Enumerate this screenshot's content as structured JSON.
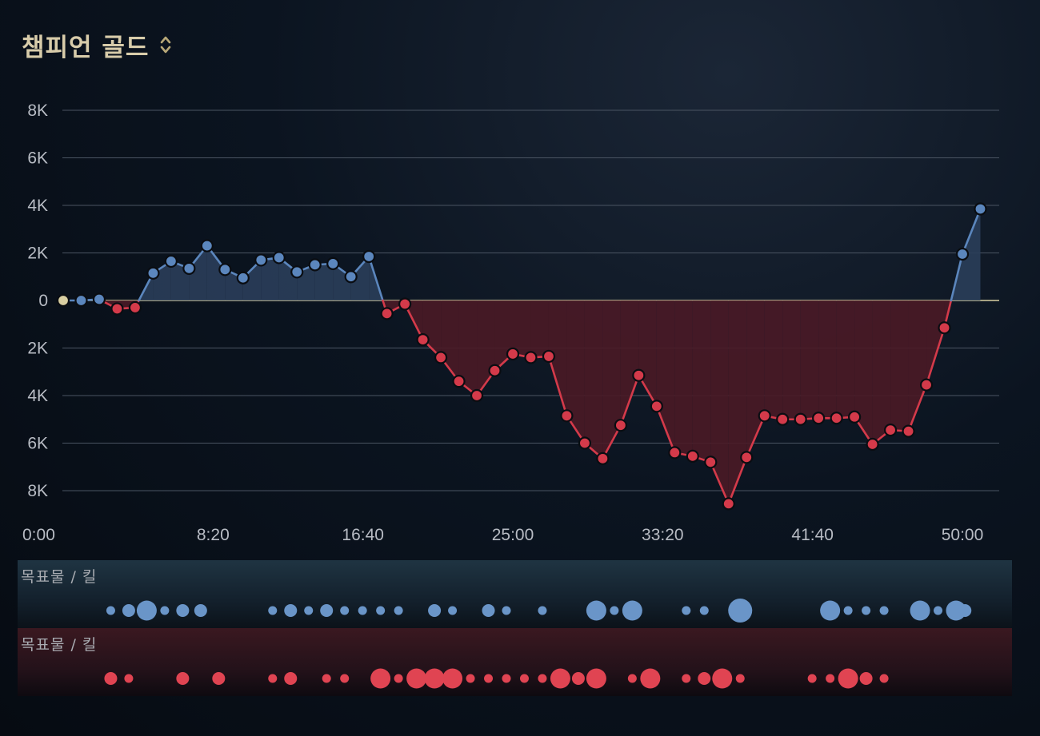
{
  "header": {
    "title": "챔피언 골드"
  },
  "icons": {
    "sort": "sort-updown-icon"
  },
  "colors": {
    "blue": "#5b86bd",
    "red": "#d43a4a",
    "neutral": "#d9cfa2",
    "blue_fill": "#2a3e5a",
    "red_fill": "#4a1a26"
  },
  "chart_data": {
    "type": "line",
    "x_unit": "minutes",
    "x_ticks": [
      "0:00",
      "8:20",
      "16:40",
      "25:00",
      "33:20",
      "41:40",
      "50:00"
    ],
    "y_ticks": [
      "8K",
      "6K",
      "4K",
      "2K",
      "0",
      "2K",
      "4K",
      "6K",
      "8K"
    ],
    "ylim": [
      -8000,
      8000
    ],
    "xlim": [
      0,
      52
    ],
    "grid": true,
    "series": [
      {
        "x": [
          0,
          1,
          2,
          3,
          4,
          5,
          6,
          7,
          8,
          9,
          10,
          11,
          12,
          13,
          14,
          15,
          16,
          17,
          18,
          19,
          20,
          21,
          22,
          23,
          24,
          25,
          26,
          27,
          28,
          29,
          30,
          31,
          32,
          33,
          34,
          35,
          36,
          37,
          38,
          39,
          40,
          41,
          42,
          43,
          44,
          45,
          46,
          47,
          48,
          49,
          50,
          51,
          52
        ],
        "y": [
          0,
          0,
          50,
          -350,
          -300,
          1150,
          1650,
          1350,
          2300,
          1300,
          950,
          1700,
          1800,
          1200,
          1500,
          1550,
          1000,
          1850,
          -550,
          -150,
          -1650,
          -2400,
          -3400,
          -4000,
          -2950,
          -2250,
          -2400,
          -2350,
          -4850,
          -6000,
          -6650,
          -5250,
          -3150,
          -4450,
          -6400,
          -6550,
          -6800,
          -8550,
          -6600,
          -4850,
          -5000,
          -5000,
          -4950,
          -4950,
          -4900,
          -6050,
          -5450,
          -5500,
          -3550,
          -1150,
          1950,
          3850,
          null
        ]
      }
    ],
    "bands": [
      {
        "label": "목표물 / 킬",
        "team": "blue",
        "events": [
          {
            "t": 3,
            "s": "s"
          },
          {
            "t": 4,
            "s": "m"
          },
          {
            "t": 5,
            "s": "l"
          },
          {
            "t": 6,
            "s": "s"
          },
          {
            "t": 7,
            "s": "m"
          },
          {
            "t": 8,
            "s": "m"
          },
          {
            "t": 12,
            "s": "s"
          },
          {
            "t": 13,
            "s": "m"
          },
          {
            "t": 14,
            "s": "s"
          },
          {
            "t": 15,
            "s": "m"
          },
          {
            "t": 16,
            "s": "s"
          },
          {
            "t": 17,
            "s": "s"
          },
          {
            "t": 18,
            "s": "s"
          },
          {
            "t": 19,
            "s": "s"
          },
          {
            "t": 21,
            "s": "m"
          },
          {
            "t": 22,
            "s": "s"
          },
          {
            "t": 24,
            "s": "m"
          },
          {
            "t": 25,
            "s": "s"
          },
          {
            "t": 27,
            "s": "s"
          },
          {
            "t": 30,
            "s": "l"
          },
          {
            "t": 31,
            "s": "s"
          },
          {
            "t": 32,
            "s": "l"
          },
          {
            "t": 35,
            "s": "s"
          },
          {
            "t": 36,
            "s": "s"
          },
          {
            "t": 38,
            "s": "xl"
          },
          {
            "t": 43,
            "s": "l"
          },
          {
            "t": 44,
            "s": "s"
          },
          {
            "t": 45,
            "s": "s"
          },
          {
            "t": 46,
            "s": "s"
          },
          {
            "t": 48,
            "s": "l"
          },
          {
            "t": 49,
            "s": "s"
          },
          {
            "t": 50,
            "s": "l"
          },
          {
            "t": 50.5,
            "s": "m"
          }
        ]
      },
      {
        "label": "목표물 / 킬",
        "team": "red",
        "events": [
          {
            "t": 3,
            "s": "m"
          },
          {
            "t": 4,
            "s": "s"
          },
          {
            "t": 7,
            "s": "m"
          },
          {
            "t": 9,
            "s": "m"
          },
          {
            "t": 12,
            "s": "s"
          },
          {
            "t": 13,
            "s": "m"
          },
          {
            "t": 15,
            "s": "s"
          },
          {
            "t": 16,
            "s": "s"
          },
          {
            "t": 18,
            "s": "l"
          },
          {
            "t": 19,
            "s": "s"
          },
          {
            "t": 20,
            "s": "l"
          },
          {
            "t": 21,
            "s": "l"
          },
          {
            "t": 22,
            "s": "l"
          },
          {
            "t": 23,
            "s": "s"
          },
          {
            "t": 24,
            "s": "s"
          },
          {
            "t": 25,
            "s": "s"
          },
          {
            "t": 26,
            "s": "s"
          },
          {
            "t": 27,
            "s": "s"
          },
          {
            "t": 28,
            "s": "l"
          },
          {
            "t": 29,
            "s": "m"
          },
          {
            "t": 30,
            "s": "l"
          },
          {
            "t": 32,
            "s": "s"
          },
          {
            "t": 33,
            "s": "l"
          },
          {
            "t": 35,
            "s": "s"
          },
          {
            "t": 36,
            "s": "m"
          },
          {
            "t": 37,
            "s": "l"
          },
          {
            "t": 38,
            "s": "s"
          },
          {
            "t": 42,
            "s": "s"
          },
          {
            "t": 43,
            "s": "s"
          },
          {
            "t": 44,
            "s": "l"
          },
          {
            "t": 45,
            "s": "m"
          },
          {
            "t": 46,
            "s": "s"
          }
        ]
      }
    ]
  }
}
